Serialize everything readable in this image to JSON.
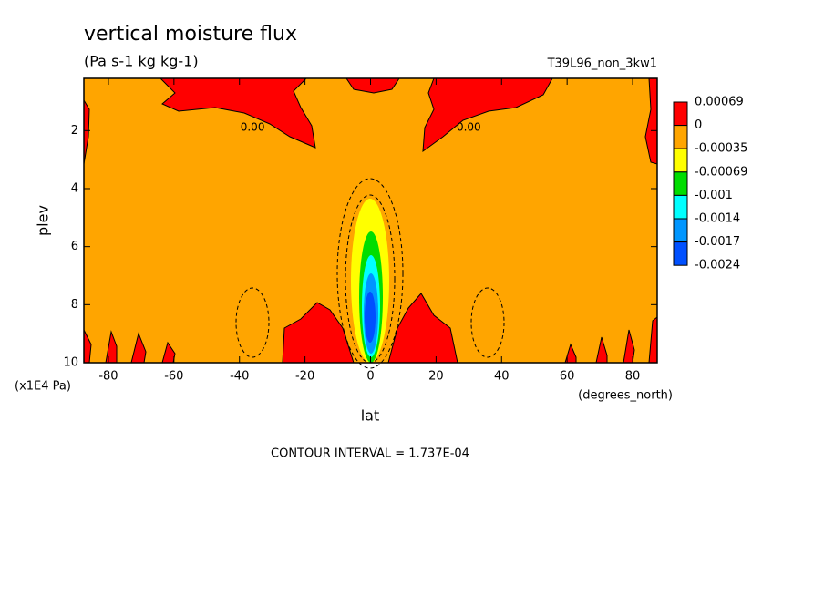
{
  "chart_data": {
    "type": "contour",
    "title": "vertical moisture flux",
    "subtitle": "(Pa s-1 kg kg-1)",
    "run_label": "T39L96_non_3kw1",
    "x_label": "lat",
    "y_label": "plev",
    "x_unit": "(degrees_north)",
    "y_unit": "(x1E4 Pa)",
    "xlim": [
      -87.5,
      87.5
    ],
    "xticks": [
      -80,
      -60,
      -40,
      -20,
      0,
      20,
      40,
      60,
      80
    ],
    "ylim": [
      10,
      0.2
    ],
    "yticks": [
      2,
      4,
      6,
      8,
      10
    ],
    "levels": [
      0.00069,
      0,
      -0.00035,
      -0.00069,
      -0.001,
      -0.0014,
      -0.0017,
      -0.0024
    ],
    "colors": [
      "#ff0000",
      "#ffa500",
      "#ffff00",
      "#00dd00",
      "#00ffff",
      "#0096ff",
      "#0050ff"
    ],
    "contour_labels": [
      "0.00",
      "0.00"
    ],
    "contour_interval": "CONTOUR INTERVAL = 1.737E-04"
  }
}
